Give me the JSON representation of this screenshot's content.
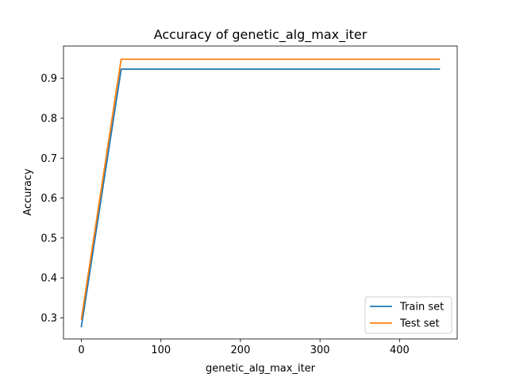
{
  "chart_data": {
    "type": "line",
    "title": "Accuracy of genetic_alg_max_iter",
    "xlabel": "genetic_alg_max_iter",
    "ylabel": "Accuracy",
    "x": [
      0,
      50,
      100,
      150,
      200,
      250,
      300,
      350,
      400,
      450
    ],
    "xlim": [
      -22.5,
      472.5
    ],
    "ylim": [
      0.247,
      0.981
    ],
    "xticks": [
      0,
      100,
      200,
      300,
      400
    ],
    "xtick_labels": [
      "0",
      "100",
      "200",
      "300",
      "400"
    ],
    "yticks": [
      0.3,
      0.4,
      0.5,
      0.6,
      0.7,
      0.8,
      0.9
    ],
    "ytick_labels": [
      "0.3",
      "0.4",
      "0.5",
      "0.6",
      "0.7",
      "0.8",
      "0.9"
    ],
    "grid": false,
    "legend_position": "lower right",
    "series": [
      {
        "name": "Train set",
        "color": "#1f77b4",
        "values": [
          0.278,
          0.923,
          0.923,
          0.923,
          0.923,
          0.923,
          0.923,
          0.923,
          0.923,
          0.923
        ]
      },
      {
        "name": "Test set",
        "color": "#ff7f0e",
        "values": [
          0.297,
          0.948,
          0.948,
          0.948,
          0.948,
          0.948,
          0.948,
          0.948,
          0.948,
          0.948
        ]
      }
    ]
  }
}
